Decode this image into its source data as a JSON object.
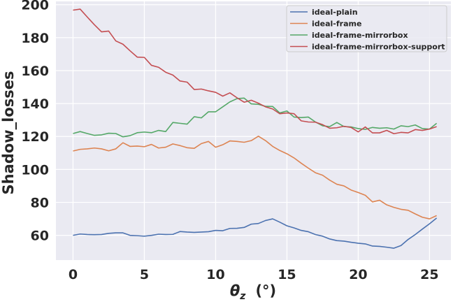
{
  "chart_data": {
    "type": "line",
    "xlabel_symbol": "θ",
    "xlabel_subscript": "z",
    "xlabel_unit": "(°)",
    "ylabel": "Shadow_losses",
    "xlim": [
      -1.2,
      26.5
    ],
    "ylim": [
      45,
      202
    ],
    "xticks": [
      "0",
      "5",
      "10",
      "15",
      "20",
      "25"
    ],
    "yticks": [
      "60",
      "80",
      "100",
      "120",
      "140",
      "160",
      "180",
      "200"
    ],
    "grid": true,
    "legend_position": "top-right",
    "background": "#eaeaf2",
    "x": [
      0,
      0.5,
      1,
      1.5,
      2,
      2.5,
      3,
      3.5,
      4,
      4.5,
      5,
      5.5,
      6,
      6.5,
      7,
      7.5,
      8,
      8.5,
      9,
      9.5,
      10,
      10.5,
      11,
      11.5,
      12,
      12.5,
      13,
      13.5,
      14,
      14.5,
      15,
      15.5,
      16,
      16.5,
      17,
      17.5,
      18,
      18.5,
      19,
      19.5,
      20,
      20.5,
      21,
      21.5,
      22,
      22.5,
      23,
      23.5,
      24,
      24.5,
      25,
      25.5
    ],
    "series": [
      {
        "name": "ideal-plain",
        "color": "#4c72b0",
        "values": [
          60.0,
          60.8,
          60.5,
          60.4,
          60.5,
          61.2,
          61.5,
          61.5,
          60.0,
          59.8,
          59.5,
          60.0,
          60.7,
          60.5,
          60.6,
          62.3,
          62.0,
          61.8,
          62.0,
          62.2,
          63.0,
          62.8,
          64.2,
          64.3,
          64.8,
          66.8,
          67.2,
          69.0,
          70.0,
          68.0,
          65.8,
          64.5,
          63.0,
          62.2,
          60.5,
          59.5,
          57.8,
          56.8,
          56.5,
          55.8,
          55.2,
          54.8,
          53.5,
          53.3,
          52.8,
          52.2,
          53.8,
          57.5,
          60.5,
          63.8,
          67.0,
          70.5
        ]
      },
      {
        "name": "ideal-frame",
        "color": "#dd8452",
        "values": [
          111.2,
          112.2,
          112.5,
          113.0,
          112.5,
          111.3,
          112.5,
          116.2,
          114.0,
          114.2,
          113.8,
          115.2,
          113.0,
          113.5,
          115.5,
          114.5,
          113.2,
          112.8,
          115.7,
          117.0,
          113.5,
          115.0,
          117.3,
          117.0,
          116.5,
          117.5,
          120.2,
          117.5,
          114.0,
          111.5,
          109.5,
          107.0,
          103.8,
          100.8,
          98.0,
          96.5,
          93.5,
          91.0,
          90.0,
          87.5,
          86.0,
          84.3,
          80.3,
          81.3,
          78.5,
          77.0,
          75.8,
          75.2,
          73.0,
          71.0,
          70.0,
          72.0
        ]
      },
      {
        "name": "ideal-frame-mirrorbox",
        "color": "#55a868",
        "values": [
          121.8,
          123.0,
          121.8,
          120.7,
          121.0,
          122.0,
          121.8,
          119.8,
          120.5,
          122.3,
          122.7,
          122.3,
          123.7,
          123.0,
          128.5,
          128.0,
          127.5,
          132.0,
          131.3,
          135.0,
          135.0,
          138.0,
          141.0,
          143.0,
          143.3,
          139.8,
          139.5,
          138.3,
          138.2,
          134.3,
          135.5,
          131.8,
          131.5,
          131.8,
          128.8,
          126.5,
          126.0,
          128.5,
          126.0,
          125.8,
          124.8,
          124.3,
          125.5,
          125.0,
          125.3,
          124.5,
          126.5,
          126.0,
          127.0,
          124.8,
          124.5,
          128.0
        ]
      },
      {
        "name": "ideal-frame-mirrorbox-support",
        "color": "#c44e52",
        "values": [
          196.7,
          197.3,
          192.5,
          187.8,
          183.5,
          184.0,
          178.0,
          176.0,
          172.0,
          168.2,
          168.0,
          163.2,
          162.0,
          159.0,
          157.3,
          153.7,
          153.0,
          148.5,
          148.8,
          147.7,
          146.8,
          144.5,
          146.5,
          143.5,
          140.8,
          142.0,
          140.2,
          138.0,
          136.7,
          133.8,
          134.3,
          133.8,
          129.5,
          128.8,
          128.7,
          127.2,
          125.0,
          125.3,
          126.2,
          125.5,
          122.8,
          125.8,
          122.2,
          122.2,
          123.7,
          121.7,
          122.5,
          122.2,
          124.2,
          123.7,
          124.5,
          126.0
        ]
      }
    ]
  }
}
